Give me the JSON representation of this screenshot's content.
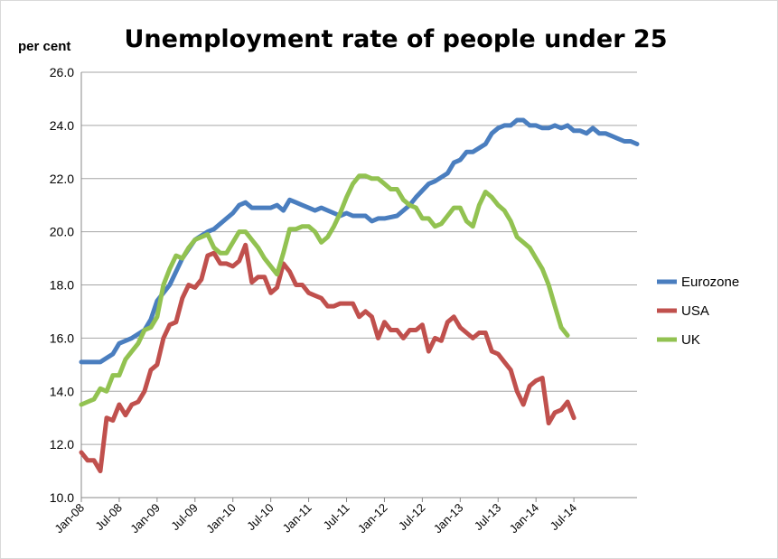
{
  "chart_data": {
    "type": "line",
    "title": "Unemployment rate of people under 25",
    "ylabel": "per cent",
    "xlabel": "",
    "ylim": [
      10,
      26
    ],
    "yticks": [
      "10.0",
      "12.0",
      "14.0",
      "16.0",
      "18.0",
      "20.0",
      "22.0",
      "24.0",
      "26.0"
    ],
    "xticks": [
      "Jan-08",
      "Jul-08",
      "Jan-09",
      "Jul-09",
      "Jan-10",
      "Jul-10",
      "Jan-11",
      "Jul-11",
      "Jan-12",
      "Jul-12",
      "Jan-13",
      "Jul-13",
      "Jan-14",
      "Jul-14"
    ],
    "x_start": "Jan-08",
    "x_months": 81,
    "grid": true,
    "legend_position": "right",
    "series": [
      {
        "name": "Eurozone",
        "color": "#4a7ebf",
        "points": [
          [
            0,
            15.1
          ],
          [
            3,
            15.1
          ],
          [
            5,
            15.4
          ],
          [
            6,
            15.8
          ],
          [
            8,
            16.0
          ],
          [
            10,
            16.3
          ],
          [
            11,
            16.7
          ],
          [
            12,
            17.4
          ],
          [
            14,
            18.0
          ],
          [
            16,
            19.0
          ],
          [
            18,
            19.7
          ],
          [
            20,
            20.0
          ],
          [
            21,
            20.1
          ],
          [
            23,
            20.5
          ],
          [
            24,
            20.7
          ],
          [
            25,
            21.0
          ],
          [
            26,
            21.1
          ],
          [
            27,
            20.9
          ],
          [
            30,
            20.9
          ],
          [
            31,
            21.0
          ],
          [
            32,
            20.8
          ],
          [
            33,
            21.2
          ],
          [
            34,
            21.1
          ],
          [
            35,
            21.0
          ],
          [
            36,
            20.9
          ],
          [
            37,
            20.8
          ],
          [
            38,
            20.9
          ],
          [
            40,
            20.7
          ],
          [
            41,
            20.6
          ],
          [
            42,
            20.7
          ],
          [
            43,
            20.6
          ],
          [
            45,
            20.6
          ],
          [
            46,
            20.4
          ],
          [
            47,
            20.5
          ],
          [
            48,
            20.5
          ],
          [
            50,
            20.6
          ],
          [
            51,
            20.8
          ],
          [
            52,
            21.0
          ],
          [
            53,
            21.3
          ],
          [
            55,
            21.8
          ],
          [
            56,
            21.9
          ],
          [
            58,
            22.2
          ],
          [
            59,
            22.6
          ],
          [
            60,
            22.7
          ],
          [
            61,
            23.0
          ],
          [
            62,
            23.0
          ],
          [
            64,
            23.3
          ],
          [
            65,
            23.7
          ],
          [
            66,
            23.9
          ],
          [
            67,
            24.0
          ],
          [
            68,
            24.0
          ],
          [
            69,
            24.2
          ],
          [
            70,
            24.2
          ],
          [
            71,
            24.0
          ],
          [
            72,
            24.0
          ],
          [
            73,
            23.9
          ],
          [
            74,
            23.9
          ],
          [
            75,
            24.0
          ],
          [
            76,
            23.9
          ],
          [
            77,
            24.0
          ],
          [
            78,
            23.8
          ],
          [
            79,
            23.8
          ],
          [
            80,
            23.7
          ],
          [
            81,
            23.9
          ],
          [
            82,
            23.7
          ],
          [
            83,
            23.7
          ],
          [
            84,
            23.6
          ],
          [
            85,
            23.5
          ],
          [
            86,
            23.4
          ],
          [
            87,
            23.4
          ],
          [
            88,
            23.3
          ]
        ]
      },
      {
        "name": "USA",
        "color": "#c0504d",
        "points": [
          [
            0,
            11.7
          ],
          [
            1,
            11.4
          ],
          [
            2,
            11.4
          ],
          [
            3,
            11.0
          ],
          [
            4,
            13.0
          ],
          [
            5,
            12.9
          ],
          [
            6,
            13.5
          ],
          [
            7,
            13.1
          ],
          [
            8,
            13.5
          ],
          [
            9,
            13.6
          ],
          [
            10,
            14.0
          ],
          [
            11,
            14.8
          ],
          [
            12,
            15.0
          ],
          [
            13,
            16.0
          ],
          [
            14,
            16.5
          ],
          [
            15,
            16.6
          ],
          [
            16,
            17.5
          ],
          [
            17,
            18.0
          ],
          [
            18,
            17.9
          ],
          [
            19,
            18.2
          ],
          [
            20,
            19.1
          ],
          [
            21,
            19.2
          ],
          [
            22,
            18.8
          ],
          [
            23,
            18.8
          ],
          [
            24,
            18.7
          ],
          [
            25,
            18.9
          ],
          [
            26,
            19.5
          ],
          [
            27,
            18.1
          ],
          [
            28,
            18.3
          ],
          [
            29,
            18.3
          ],
          [
            30,
            17.7
          ],
          [
            31,
            17.9
          ],
          [
            32,
            18.8
          ],
          [
            33,
            18.5
          ],
          [
            34,
            18.0
          ],
          [
            35,
            18.0
          ],
          [
            36,
            17.7
          ],
          [
            37,
            17.6
          ],
          [
            38,
            17.5
          ],
          [
            39,
            17.2
          ],
          [
            40,
            17.2
          ],
          [
            41,
            17.3
          ],
          [
            42,
            17.3
          ],
          [
            43,
            17.3
          ],
          [
            44,
            16.8
          ],
          [
            45,
            17.0
          ],
          [
            46,
            16.8
          ],
          [
            47,
            16.0
          ],
          [
            48,
            16.6
          ],
          [
            49,
            16.3
          ],
          [
            50,
            16.3
          ],
          [
            51,
            16.0
          ],
          [
            52,
            16.3
          ],
          [
            53,
            16.3
          ],
          [
            54,
            16.5
          ],
          [
            55,
            15.5
          ],
          [
            56,
            16.0
          ],
          [
            57,
            15.9
          ],
          [
            58,
            16.6
          ],
          [
            59,
            16.8
          ],
          [
            60,
            16.4
          ],
          [
            61,
            16.2
          ],
          [
            62,
            16.0
          ],
          [
            63,
            16.2
          ],
          [
            64,
            16.2
          ],
          [
            65,
            15.5
          ],
          [
            66,
            15.4
          ],
          [
            67,
            15.1
          ],
          [
            68,
            14.8
          ],
          [
            69,
            14.0
          ],
          [
            70,
            13.5
          ],
          [
            71,
            14.2
          ],
          [
            72,
            14.4
          ],
          [
            73,
            14.5
          ],
          [
            74,
            12.8
          ],
          [
            75,
            13.2
          ],
          [
            76,
            13.3
          ],
          [
            77,
            13.6
          ],
          [
            78,
            13.0
          ]
        ]
      },
      {
        "name": "UK",
        "color": "#92c251",
        "points": [
          [
            0,
            13.5
          ],
          [
            1,
            13.6
          ],
          [
            2,
            13.7
          ],
          [
            3,
            14.1
          ],
          [
            4,
            14.0
          ],
          [
            5,
            14.6
          ],
          [
            6,
            14.6
          ],
          [
            7,
            15.2
          ],
          [
            8,
            15.5
          ],
          [
            9,
            15.8
          ],
          [
            10,
            16.3
          ],
          [
            11,
            16.4
          ],
          [
            12,
            16.8
          ],
          [
            13,
            18.0
          ],
          [
            14,
            18.6
          ],
          [
            15,
            19.1
          ],
          [
            16,
            19.0
          ],
          [
            17,
            19.4
          ],
          [
            18,
            19.7
          ],
          [
            19,
            19.8
          ],
          [
            20,
            19.9
          ],
          [
            21,
            19.4
          ],
          [
            22,
            19.2
          ],
          [
            23,
            19.2
          ],
          [
            24,
            19.6
          ],
          [
            25,
            20.0
          ],
          [
            26,
            20.0
          ],
          [
            27,
            19.7
          ],
          [
            28,
            19.4
          ],
          [
            29,
            19.0
          ],
          [
            30,
            18.7
          ],
          [
            31,
            18.4
          ],
          [
            32,
            19.2
          ],
          [
            33,
            20.1
          ],
          [
            34,
            20.1
          ],
          [
            35,
            20.2
          ],
          [
            36,
            20.2
          ],
          [
            37,
            20.0
          ],
          [
            38,
            19.6
          ],
          [
            39,
            19.8
          ],
          [
            40,
            20.2
          ],
          [
            41,
            20.7
          ],
          [
            42,
            21.3
          ],
          [
            43,
            21.8
          ],
          [
            44,
            22.1
          ],
          [
            45,
            22.1
          ],
          [
            46,
            22.0
          ],
          [
            47,
            22.0
          ],
          [
            48,
            21.8
          ],
          [
            49,
            21.6
          ],
          [
            50,
            21.6
          ],
          [
            51,
            21.2
          ],
          [
            52,
            21.0
          ],
          [
            53,
            20.9
          ],
          [
            54,
            20.5
          ],
          [
            55,
            20.5
          ],
          [
            56,
            20.2
          ],
          [
            57,
            20.3
          ],
          [
            58,
            20.6
          ],
          [
            59,
            20.9
          ],
          [
            60,
            20.9
          ],
          [
            61,
            20.4
          ],
          [
            62,
            20.2
          ],
          [
            63,
            21.0
          ],
          [
            64,
            21.5
          ],
          [
            65,
            21.3
          ],
          [
            66,
            21.0
          ],
          [
            67,
            20.8
          ],
          [
            68,
            20.4
          ],
          [
            69,
            19.8
          ],
          [
            70,
            19.6
          ],
          [
            71,
            19.4
          ],
          [
            72,
            19.0
          ],
          [
            73,
            18.6
          ],
          [
            74,
            18.0
          ],
          [
            75,
            17.2
          ],
          [
            76,
            16.4
          ],
          [
            77,
            16.1
          ]
        ]
      }
    ]
  }
}
